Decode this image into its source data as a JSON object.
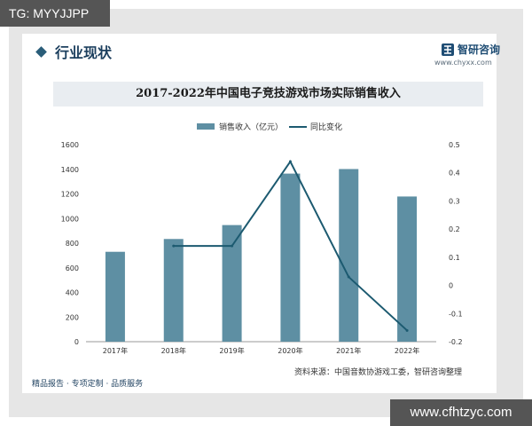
{
  "watermark_top_left": "TG: MYYJJPP",
  "watermark_bottom_right": "www.cfhtzyc.com",
  "section": {
    "title": "行业现状"
  },
  "brand": {
    "name": "智研咨询",
    "url": "www.chyxx.com"
  },
  "footer": {
    "text": "精品报告 · 专项定制 · 品质服务"
  },
  "source": {
    "text": "资料来源：中国音数协游戏工委，智研咨询整理"
  },
  "colors": {
    "bar": "#5e8fa3",
    "line": "#1c5a70",
    "title_band": "#e9edf1",
    "accent": "#2a5d79"
  },
  "chart_data": {
    "type": "bar",
    "title": "2017-2022年中国电子竞技游戏市场实际销售收入",
    "categories": [
      "2017年",
      "2018年",
      "2019年",
      "2020年",
      "2021年",
      "2022年"
    ],
    "series": [
      {
        "name": "销售收入（亿元）",
        "type": "bar",
        "axis": "left",
        "values": [
          730,
          834,
          947,
          1365,
          1402,
          1179
        ]
      },
      {
        "name": "同比变化",
        "type": "line",
        "axis": "right",
        "values": [
          null,
          0.14,
          0.14,
          0.44,
          0.03,
          -0.16
        ]
      }
    ],
    "ylim_left": [
      0,
      1600
    ],
    "yticks_left": [
      "0",
      "200",
      "400",
      "600",
      "800",
      "1000",
      "1200",
      "1400",
      "1600"
    ],
    "ylim_right": [
      -0.2,
      0.5
    ],
    "yticks_right": [
      "-0.2",
      "-0.1",
      "0",
      "0.1",
      "0.2",
      "0.3",
      "0.4",
      "0.5"
    ],
    "legend_position": "top-center",
    "grid": false
  }
}
